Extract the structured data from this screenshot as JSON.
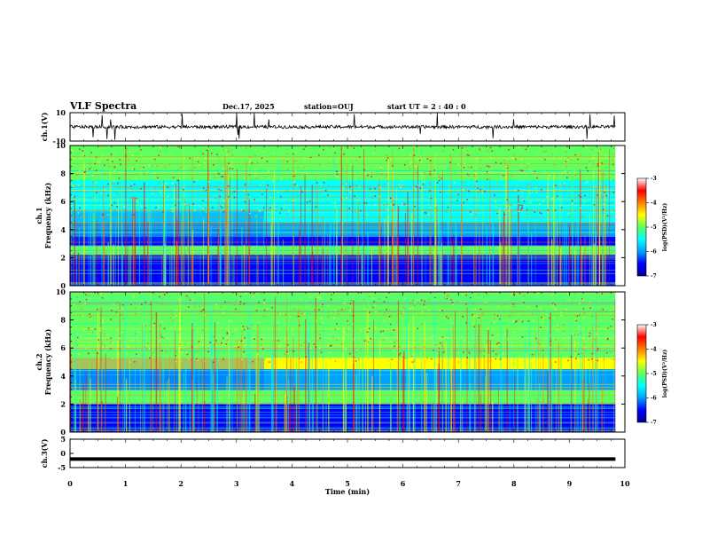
{
  "header": {
    "title": "VLF Spectra",
    "date": "Dec.17, 2025",
    "station": "station=OUJ",
    "start": "start  UT  =   2  : 40 : 0"
  },
  "chart_data": [
    {
      "type": "line",
      "name": "ch1-waveform",
      "ylabel": "ch.1(V)",
      "ylim": [
        -10,
        10
      ],
      "yticks": [
        "10",
        "-10"
      ],
      "baseline": 0,
      "description_values": "noise around 0 V with short spikes"
    },
    {
      "type": "heatmap",
      "name": "ch1-spectrogram",
      "ylabel": "ch.1\nFrequency  (kHz)",
      "ylabel_line1": "ch.1",
      "ylabel_line2": "Frequency  (kHz)",
      "ylim": [
        0,
        10
      ],
      "yticks": [
        "0",
        "2",
        "4",
        "6",
        "8",
        "10"
      ],
      "bands_khz": [
        {
          "from": 0,
          "to": 3.5,
          "level": -6.2
        },
        {
          "from": 2.2,
          "to": 2.8,
          "level": -5.0
        },
        {
          "from": 3.5,
          "to": 4.5,
          "level": -5.8
        },
        {
          "from": 4.5,
          "to": 5.2,
          "level": -5.1
        },
        {
          "from": 5.2,
          "to": 7.5,
          "level": -5.4
        },
        {
          "from": 7.5,
          "to": 10,
          "level": -4.6
        }
      ],
      "colorbar": {
        "label": "log(PSD)(V²/Hz)",
        "ticks": [
          "-3",
          "-4",
          "-5",
          "-6",
          "-7"
        ],
        "min": -7,
        "max": -3
      }
    },
    {
      "type": "heatmap",
      "name": "ch2-spectrogram",
      "ylabel_line1": "ch.2",
      "ylabel_line2": "Frequency  (kHz)",
      "ylim": [
        0,
        10
      ],
      "yticks": [
        "0",
        "2",
        "4",
        "6",
        "8",
        "10"
      ],
      "bands_khz": [
        {
          "from": 0,
          "to": 2.0,
          "level": -6.3
        },
        {
          "from": 2.0,
          "to": 3.0,
          "level": -4.7
        },
        {
          "from": 3.0,
          "to": 4.5,
          "level": -5.7
        },
        {
          "from": 4.5,
          "to": 5.3,
          "level": -4.4
        },
        {
          "from": 5.3,
          "to": 10,
          "level": -4.8
        }
      ],
      "colorbar": {
        "label": "log(PSD)(V²/Hz)",
        "ticks": [
          "-3",
          "-4",
          "-5",
          "-6",
          "-7"
        ],
        "min": -7,
        "max": -3
      }
    },
    {
      "type": "line",
      "name": "ch3-waveform",
      "ylabel": "ch.3(V)",
      "ylim": [
        -5,
        5
      ],
      "yticks": [
        "5",
        "0",
        "-5"
      ],
      "value": -2
    }
  ],
  "xaxis": {
    "label": "Time  (min)",
    "range": [
      0,
      10
    ],
    "ticks": [
      "0",
      "1",
      "2",
      "3",
      "4",
      "5",
      "6",
      "7",
      "8",
      "9",
      "10"
    ],
    "data_end": 9.83
  },
  "colors": {
    "frame": "#000000",
    "colormap": [
      "#00008f",
      "#0000ff",
      "#00a0ff",
      "#00ffff",
      "#60ff60",
      "#ffff00",
      "#ff8000",
      "#ff0000",
      "#ffffff"
    ]
  }
}
